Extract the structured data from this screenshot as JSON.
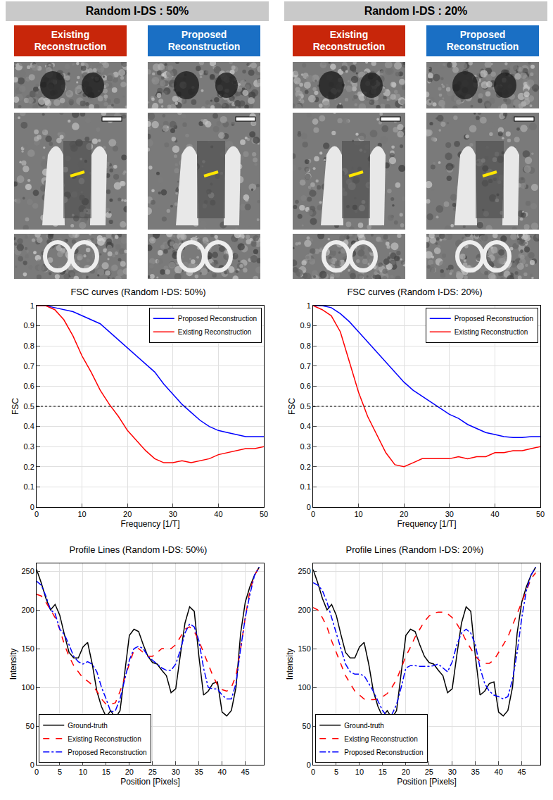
{
  "panels": [
    {
      "title": "Random I-DS : 50%",
      "columns": [
        "Existing Reconstruction",
        "Proposed Reconstruction"
      ]
    },
    {
      "title": "Random I-DS : 20%",
      "columns": [
        "Existing Reconstruction",
        "Proposed Reconstruction"
      ]
    }
  ],
  "chart_data": [
    {
      "type": "line",
      "title": "FSC curves (Random I-DS: 50%)",
      "xlabel": "Frequency [1/T]",
      "ylabel": "FSC",
      "xlim": [
        0,
        50
      ],
      "ylim": [
        0,
        1
      ],
      "xticks": [
        0,
        10,
        20,
        30,
        40,
        50
      ],
      "yticks": [
        0,
        0.1,
        0.2,
        0.3,
        0.4,
        0.5,
        0.6,
        0.7,
        0.8,
        0.9,
        1
      ],
      "grid": true,
      "legend": "upper right",
      "reference_line": 0.5,
      "x": [
        0,
        2,
        4,
        6,
        8,
        10,
        12,
        14,
        16,
        18,
        20,
        22,
        24,
        26,
        28,
        30,
        32,
        34,
        36,
        38,
        40,
        42,
        44,
        46,
        48,
        50
      ],
      "series": [
        {
          "name": "Proposed Reconstruction",
          "color": "#0000ff",
          "line_style": "solid",
          "values": [
            1,
            1,
            0.99,
            0.98,
            0.97,
            0.95,
            0.93,
            0.91,
            0.87,
            0.83,
            0.79,
            0.75,
            0.71,
            0.67,
            0.61,
            0.56,
            0.51,
            0.47,
            0.43,
            0.4,
            0.38,
            0.37,
            0.36,
            0.35,
            0.35,
            0.35
          ]
        },
        {
          "name": "Existing Reconstruction",
          "color": "#ff0000",
          "line_style": "solid",
          "values": [
            1,
            1,
            0.98,
            0.93,
            0.85,
            0.75,
            0.67,
            0.58,
            0.51,
            0.45,
            0.38,
            0.33,
            0.28,
            0.24,
            0.22,
            0.22,
            0.23,
            0.22,
            0.23,
            0.24,
            0.26,
            0.27,
            0.28,
            0.29,
            0.29,
            0.3
          ]
        }
      ]
    },
    {
      "type": "line",
      "title": "FSC curves (Random I-DS: 20%)",
      "xlabel": "Frequency [1/T]",
      "ylabel": "FSC",
      "xlim": [
        0,
        50
      ],
      "ylim": [
        0,
        1
      ],
      "xticks": [
        0,
        10,
        20,
        30,
        40,
        50
      ],
      "yticks": [
        0,
        0.1,
        0.2,
        0.3,
        0.4,
        0.5,
        0.6,
        0.7,
        0.8,
        0.9,
        1
      ],
      "grid": true,
      "legend": "upper right",
      "reference_line": 0.5,
      "x": [
        0,
        2,
        4,
        6,
        8,
        10,
        12,
        14,
        16,
        18,
        20,
        22,
        24,
        26,
        28,
        30,
        32,
        34,
        36,
        38,
        40,
        42,
        44,
        46,
        48,
        50
      ],
      "series": [
        {
          "name": "Proposed Reconstruction",
          "color": "#0000ff",
          "line_style": "solid",
          "values": [
            1,
            1,
            0.99,
            0.96,
            0.92,
            0.87,
            0.82,
            0.77,
            0.72,
            0.67,
            0.62,
            0.58,
            0.55,
            0.52,
            0.49,
            0.46,
            0.44,
            0.41,
            0.39,
            0.37,
            0.36,
            0.35,
            0.345,
            0.345,
            0.35,
            0.35
          ]
        },
        {
          "name": "Existing Reconstruction",
          "color": "#ff0000",
          "line_style": "solid",
          "values": [
            1,
            0.98,
            0.95,
            0.87,
            0.72,
            0.57,
            0.45,
            0.36,
            0.27,
            0.21,
            0.2,
            0.22,
            0.24,
            0.24,
            0.24,
            0.24,
            0.25,
            0.24,
            0.25,
            0.25,
            0.27,
            0.27,
            0.28,
            0.28,
            0.29,
            0.3
          ]
        }
      ]
    },
    {
      "type": "line",
      "title": "Profile Lines (Random I-DS: 50%)",
      "xlabel": "Position [Pixels]",
      "ylabel": "Intensity",
      "xlim": [
        0,
        49
      ],
      "ylim": [
        0,
        260
      ],
      "xticks": [
        0,
        5,
        10,
        15,
        20,
        25,
        30,
        35,
        40,
        45
      ],
      "yticks": [
        0,
        50,
        100,
        150,
        200,
        250
      ],
      "grid": true,
      "legend": "lower left",
      "x": [
        0,
        1,
        2,
        3,
        4,
        5,
        6,
        7,
        8,
        9,
        10,
        11,
        12,
        13,
        14,
        15,
        16,
        17,
        18,
        19,
        20,
        21,
        22,
        23,
        24,
        25,
        26,
        27,
        28,
        29,
        30,
        31,
        32,
        33,
        34,
        35,
        36,
        37,
        38,
        39,
        40,
        41,
        42,
        43,
        44,
        45,
        46,
        47,
        48
      ],
      "series": [
        {
          "name": "Ground-truth",
          "color": "#000000",
          "line_style": "solid",
          "values": [
            252,
            235,
            215,
            200,
            207,
            193,
            168,
            145,
            138,
            138,
            152,
            158,
            130,
            95,
            75,
            62,
            70,
            60,
            70,
            120,
            167,
            175,
            172,
            155,
            140,
            132,
            130,
            122,
            115,
            93,
            98,
            142,
            183,
            204,
            198,
            140,
            90,
            95,
            105,
            107,
            68,
            63,
            70,
            100,
            170,
            210,
            230,
            245,
            255
          ]
        },
        {
          "name": "Existing Reconstruction",
          "color": "#ff0000",
          "line_style": "dash",
          "values": [
            220,
            218,
            210,
            200,
            190,
            175,
            155,
            140,
            128,
            120,
            112,
            108,
            103,
            95,
            85,
            78,
            78,
            80,
            95,
            112,
            130,
            148,
            150,
            145,
            140,
            140,
            145,
            150,
            150,
            150,
            155,
            165,
            175,
            178,
            172,
            160,
            145,
            130,
            115,
            103,
            97,
            95,
            100,
            115,
            150,
            190,
            225,
            245,
            255
          ]
        },
        {
          "name": "Proposed Reconstruction",
          "color": "#0000ff",
          "line_style": "dashdot",
          "values": [
            237,
            232,
            218,
            200,
            195,
            175,
            168,
            155,
            140,
            133,
            130,
            133,
            130,
            120,
            100,
            85,
            68,
            70,
            85,
            110,
            135,
            150,
            153,
            150,
            140,
            135,
            130,
            125,
            122,
            122,
            130,
            148,
            170,
            182,
            178,
            160,
            125,
            100,
            98,
            98,
            90,
            85,
            85,
            105,
            150,
            190,
            220,
            245,
            255
          ]
        }
      ]
    },
    {
      "type": "line",
      "title": "Profile Lines (Random I-DS: 20%)",
      "xlabel": "Position [Pixels]",
      "ylabel": "Intensity",
      "xlim": [
        0,
        49
      ],
      "ylim": [
        0,
        260
      ],
      "xticks": [
        0,
        5,
        10,
        15,
        20,
        25,
        30,
        35,
        40,
        45
      ],
      "yticks": [
        0,
        50,
        100,
        150,
        200,
        250
      ],
      "grid": true,
      "legend": "lower left",
      "x": [
        0,
        1,
        2,
        3,
        4,
        5,
        6,
        7,
        8,
        9,
        10,
        11,
        12,
        13,
        14,
        15,
        16,
        17,
        18,
        19,
        20,
        21,
        22,
        23,
        24,
        25,
        26,
        27,
        28,
        29,
        30,
        31,
        32,
        33,
        34,
        35,
        36,
        37,
        38,
        39,
        40,
        41,
        42,
        43,
        44,
        45,
        46,
        47,
        48
      ],
      "series": [
        {
          "name": "Ground-truth",
          "color": "#000000",
          "line_style": "solid",
          "values": [
            252,
            235,
            215,
            200,
            207,
            193,
            168,
            145,
            138,
            138,
            152,
            158,
            130,
            95,
            75,
            62,
            70,
            60,
            70,
            120,
            167,
            175,
            172,
            155,
            140,
            132,
            130,
            122,
            115,
            93,
            98,
            142,
            183,
            204,
            198,
            140,
            90,
            95,
            105,
            107,
            68,
            63,
            70,
            100,
            170,
            210,
            230,
            245,
            255
          ]
        },
        {
          "name": "Existing Reconstruction",
          "color": "#ff0000",
          "line_style": "dash",
          "values": [
            203,
            200,
            190,
            178,
            160,
            145,
            130,
            115,
            105,
            95,
            90,
            85,
            84,
            84,
            85,
            88,
            92,
            100,
            110,
            125,
            140,
            152,
            165,
            175,
            185,
            192,
            196,
            197,
            197,
            195,
            190,
            182,
            172,
            160,
            150,
            140,
            134,
            131,
            131,
            135,
            145,
            155,
            165,
            180,
            195,
            210,
            225,
            240,
            248
          ]
        },
        {
          "name": "Proposed Reconstruction",
          "color": "#0000ff",
          "line_style": "dashdot",
          "values": [
            235,
            232,
            225,
            210,
            190,
            170,
            148,
            130,
            120,
            117,
            117,
            115,
            105,
            95,
            82,
            70,
            62,
            65,
            78,
            100,
            125,
            128,
            128,
            127,
            127,
            127,
            128,
            130,
            125,
            120,
            133,
            155,
            170,
            175,
            170,
            155,
            125,
            105,
            95,
            90,
            88,
            85,
            88,
            110,
            145,
            190,
            225,
            245,
            255
          ]
        }
      ]
    }
  ]
}
